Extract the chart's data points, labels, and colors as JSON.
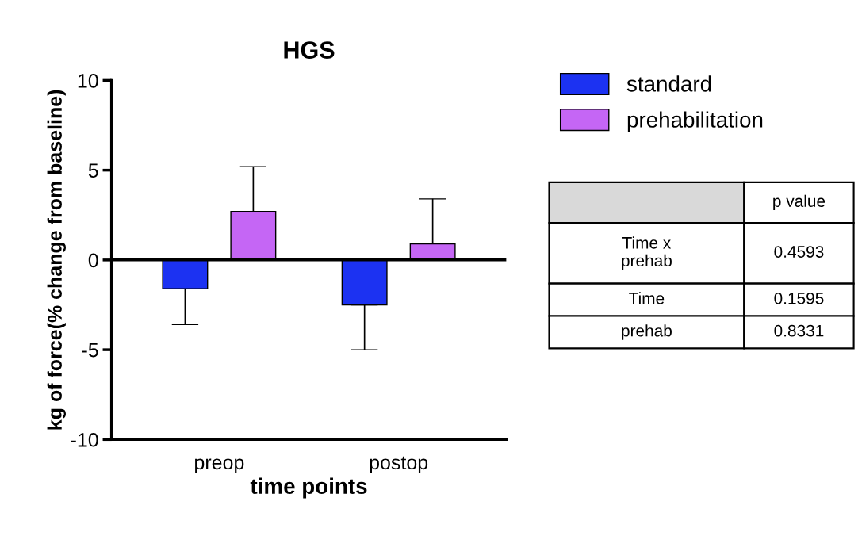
{
  "chart_data": {
    "type": "bar",
    "title": "HGS",
    "xlabel": "time points",
    "ylabel": "kg of force(% change from baseline)",
    "categories": [
      "preop",
      "postop"
    ],
    "series": [
      {
        "name": "standard",
        "color": "#1c32f2",
        "values": [
          -1.6,
          -2.5
        ],
        "errors": [
          [
            -3.6,
            -1.6
          ],
          [
            -5.0,
            -2.5
          ]
        ]
      },
      {
        "name": "prehabilitation",
        "color": "#c566f5",
        "values": [
          2.7,
          0.9
        ],
        "errors": [
          [
            2.7,
            5.2
          ],
          [
            0.9,
            3.4
          ]
        ]
      }
    ],
    "ylim": [
      -10,
      10
    ],
    "yticks": [
      -10,
      -5,
      0,
      5,
      10
    ],
    "grid": false,
    "legend": "top right",
    "ref_lines": [
      {
        "axis": "y",
        "value": 0,
        "label": null
      }
    ],
    "annotations": [
      "p value",
      "Time x\nprehab",
      "0.4593",
      "Time",
      "0.1595",
      "prehab",
      "0.8331"
    ]
  }
}
